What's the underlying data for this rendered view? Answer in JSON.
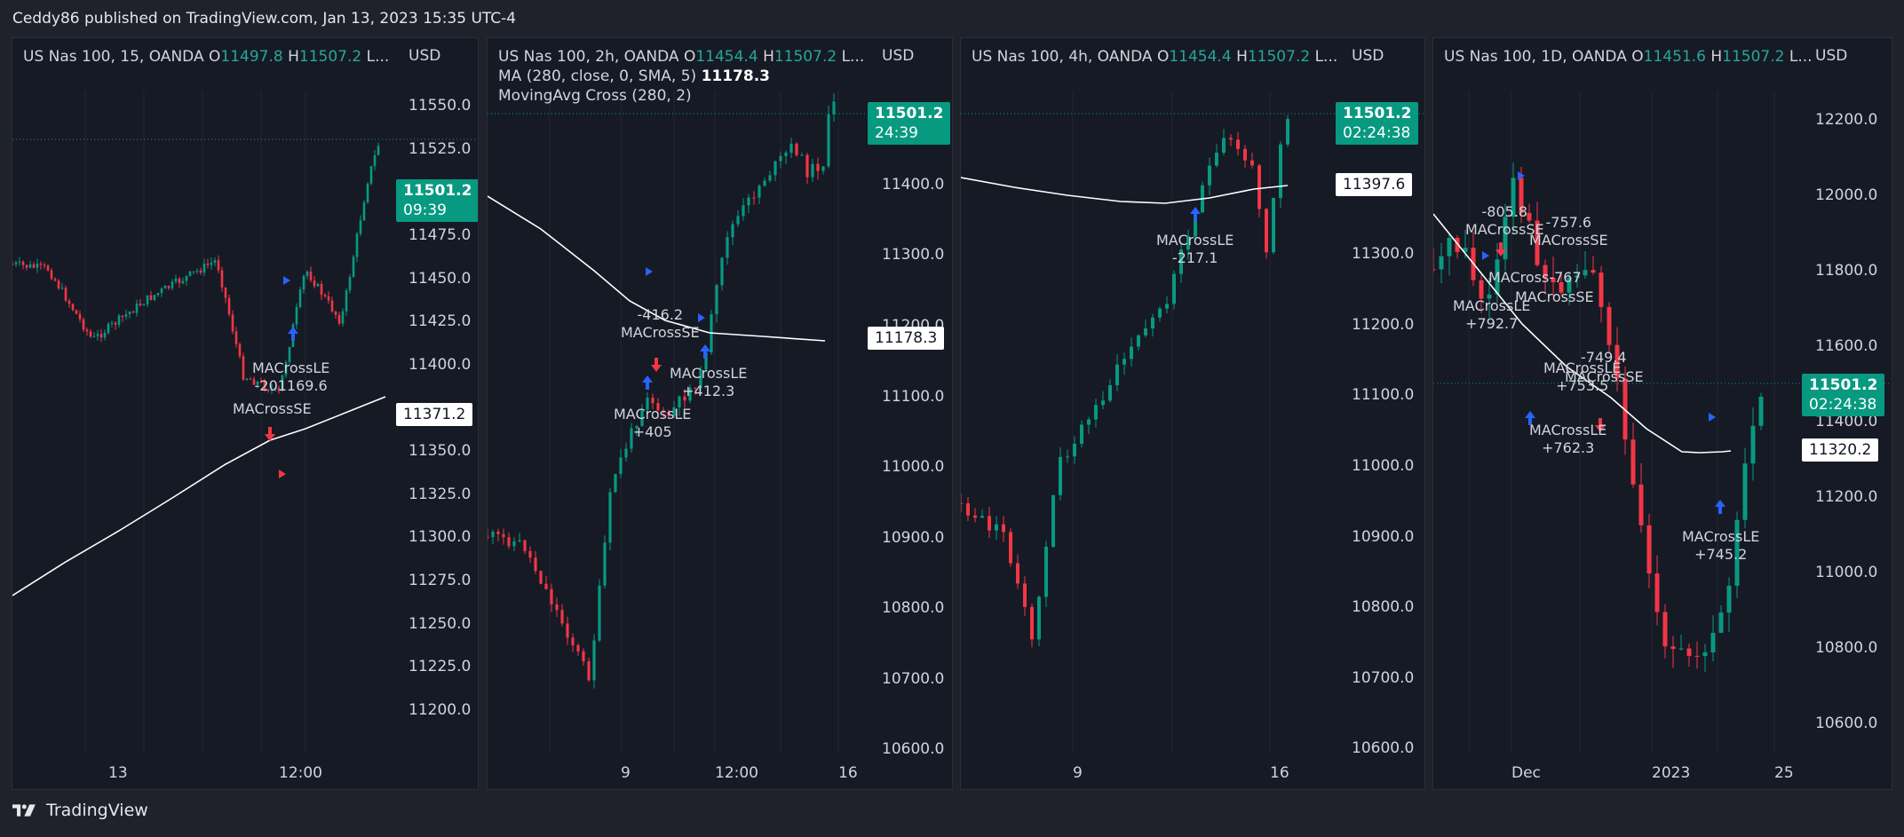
{
  "header": {
    "publisher_line": "Ceddy86 published on TradingView.com, Jan 13, 2023 15:35 UTC-4"
  },
  "footer": {
    "brand": "TradingView"
  },
  "colors": {
    "up": "#089981",
    "down": "#f23645",
    "ma": "#ffffff",
    "buy": "#2962ff",
    "sell": "#f23645"
  },
  "panels": [
    {
      "legend": {
        "symbol": "US Nas 100, 15, OANDA",
        "o_label": "O",
        "o_value": "11497.8",
        "h_label": "H",
        "h_value": "11507.2",
        "more": "L..."
      },
      "currency": "USD",
      "y_ticks": [
        "11550.0",
        "11525.0",
        "11475.0",
        "11450.0",
        "11425.0",
        "11400.0",
        "11350.0",
        "11325.0",
        "11300.0",
        "11275.0",
        "11250.0",
        "11225.0",
        "11200.0"
      ],
      "x_ticks": [
        "13",
        "12:00"
      ],
      "last_price": "11501.2",
      "countdown": "09:39",
      "ma_value": "11371.2",
      "annotations": [
        {
          "line1": "MACrossLE",
          "line2": "-201169.6"
        },
        {
          "line1": "MACrossSE",
          "line2": ""
        }
      ]
    },
    {
      "legend": {
        "symbol": "US Nas 100, 2h, OANDA",
        "o_label": "O",
        "o_value": "11454.4",
        "h_label": "H",
        "h_value": "11507.2",
        "more": "L..."
      },
      "legend_extra": [
        {
          "label": "MA (280, close, 0, SMA, 5)",
          "value": "11178.3"
        },
        {
          "label": "MovingAvg Cross (280, 2)",
          "value": ""
        }
      ],
      "currency": "USD",
      "y_ticks": [
        "11400.0",
        "11300.0",
        "11200.0",
        "11100.0",
        "11000.0",
        "10900.0",
        "10800.0",
        "10700.0",
        "10600.0"
      ],
      "x_ticks": [
        "9",
        "12:00",
        "16"
      ],
      "last_price": "11501.2",
      "countdown": "24:39",
      "ma_value": "11178.3",
      "annotations": [
        {
          "line1": "-416.2",
          "line2": "MACrossSE"
        },
        {
          "line1": "MACrossLE",
          "line2": "+412.3"
        },
        {
          "line1": "MACrossLE",
          "line2": "+405"
        }
      ]
    },
    {
      "legend": {
        "symbol": "US Nas 100, 4h, OANDA",
        "o_label": "O",
        "o_value": "11454.4",
        "h_label": "H",
        "h_value": "11507.2",
        "more": "L..."
      },
      "currency": "USD",
      "y_ticks": [
        "11300.0",
        "11200.0",
        "11100.0",
        "11000.0",
        "10900.0",
        "10800.0",
        "10700.0",
        "10600.0"
      ],
      "x_ticks": [
        "9",
        "16"
      ],
      "last_price": "11501.2",
      "countdown": "02:24:38",
      "ma_value": "11397.6",
      "annotations": [
        {
          "line1": "MACrossLE",
          "line2": "-217.1"
        }
      ]
    },
    {
      "legend": {
        "symbol": "US Nas 100, 1D, OANDA",
        "o_label": "O",
        "o_value": "11451.6",
        "h_label": "H",
        "h_value": "11507.2",
        "more": "L..."
      },
      "currency": "USD",
      "y_ticks": [
        "12200.0",
        "12000.0",
        "11800.0",
        "11600.0",
        "11400.0",
        "11200.0",
        "11000.0",
        "10800.0",
        "10600.0"
      ],
      "x_ticks": [
        "Dec",
        "2023",
        "25"
      ],
      "last_price": "11501.2",
      "countdown": "02:24:38",
      "ma_value": "11320.2",
      "annotations": [
        {
          "line1": "-805.8",
          "line2": "MACrossSE"
        },
        {
          "line1": "-757.6",
          "line2": "MACrossSE"
        },
        {
          "line1": "MACross-767",
          "line2": ""
        },
        {
          "line1": "MACrossSE",
          "line2": ""
        },
        {
          "line1": "MACrossLE",
          "line2": "+792.7"
        },
        {
          "line1": "-749.4",
          "line2": ""
        },
        {
          "line1": "MACrossLE",
          "line2": "+753.5"
        },
        {
          "line1": "MACrossSE",
          "line2": ""
        },
        {
          "line1": "MACrossLE",
          "line2": "+762.3"
        },
        {
          "line1": "MACrossLE",
          "line2": "+745.2"
        }
      ]
    }
  ]
}
